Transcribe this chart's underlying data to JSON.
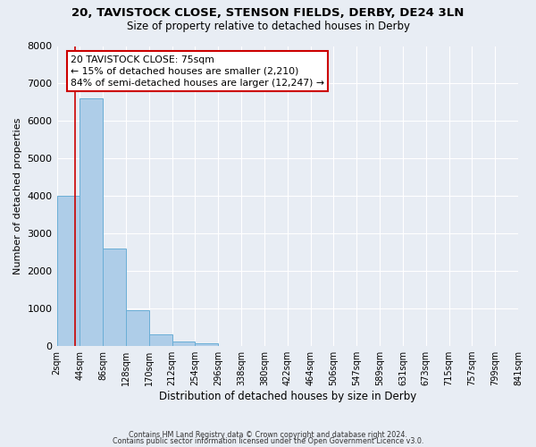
{
  "title": "20, TAVISTOCK CLOSE, STENSON FIELDS, DERBY, DE24 3LN",
  "subtitle": "Size of property relative to detached houses in Derby",
  "xlabel": "Distribution of detached houses by size in Derby",
  "ylabel": "Number of detached properties",
  "bin_labels": [
    "2sqm",
    "44sqm",
    "86sqm",
    "128sqm",
    "170sqm",
    "212sqm",
    "254sqm",
    "296sqm",
    "338sqm",
    "380sqm",
    "422sqm",
    "464sqm",
    "506sqm",
    "547sqm",
    "589sqm",
    "631sqm",
    "673sqm",
    "715sqm",
    "757sqm",
    "799sqm",
    "841sqm"
  ],
  "bar_heights": [
    4000,
    6600,
    2600,
    950,
    320,
    130,
    70,
    0,
    0,
    0,
    0,
    0,
    0,
    0,
    0,
    0,
    0,
    0,
    0,
    0
  ],
  "bar_color": "#aecde8",
  "bar_edge_color": "#6aaed6",
  "property_line_bin": 0.79,
  "property_line_color": "#cc0000",
  "annotation_title": "20 TAVISTOCK CLOSE: 75sqm",
  "annotation_line1": "← 15% of detached houses are smaller (2,210)",
  "annotation_line2": "84% of semi-detached houses are larger (12,247) →",
  "annotation_box_facecolor": "#ffffff",
  "annotation_box_edgecolor": "#cc0000",
  "ylim": [
    0,
    8000
  ],
  "yticks": [
    0,
    1000,
    2000,
    3000,
    4000,
    5000,
    6000,
    7000,
    8000
  ],
  "background_color": "#e8edf4",
  "grid_color": "#ffffff",
  "footer1": "Contains HM Land Registry data © Crown copyright and database right 2024.",
  "footer2": "Contains public sector information licensed under the Open Government Licence v3.0."
}
